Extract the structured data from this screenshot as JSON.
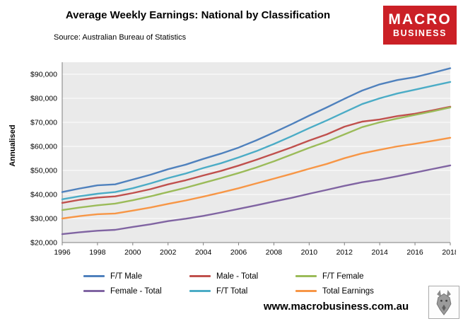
{
  "header": {
    "title": "Average Weekly Earnings: National by Classification",
    "source": "Source: Australian Bureau of Statistics"
  },
  "logo": {
    "line1": "MACRO",
    "line2": "BUSINESS",
    "bg_color": "#CB2026"
  },
  "footer": {
    "website": "www.macrobusiness.com.au"
  },
  "chart_data": {
    "type": "line",
    "title": "Average Weekly Earnings: National by Classification",
    "xlabel": "",
    "ylabel": "Annualised",
    "ylim": [
      20000,
      95000
    ],
    "y_ticks": [
      20000,
      30000,
      40000,
      50000,
      60000,
      70000,
      80000,
      90000
    ],
    "y_tick_format": "$#,##0",
    "x": [
      1996,
      1997,
      1998,
      1999,
      2000,
      2001,
      2002,
      2003,
      2004,
      2005,
      2006,
      2007,
      2008,
      2009,
      2010,
      2011,
      2012,
      2013,
      2014,
      2015,
      2016,
      2017,
      2018
    ],
    "x_ticks": [
      1996,
      1998,
      2000,
      2002,
      2004,
      2006,
      2008,
      2010,
      2012,
      2014,
      2016,
      2018
    ],
    "grid": "horizontal",
    "plot_bg": "#EAEAEA",
    "grid_color": "#FFFFFF",
    "legend_position": "bottom",
    "series": [
      {
        "name": "F/T Male",
        "color": "#4F81BD",
        "values": [
          41000,
          42500,
          43800,
          44200,
          46200,
          48200,
          50500,
          52400,
          54800,
          57000,
          59500,
          62500,
          65800,
          69200,
          72800,
          76200,
          79800,
          83200,
          85800,
          87600,
          88800,
          90600,
          92500
        ]
      },
      {
        "name": "Male - Total",
        "color": "#C0504D",
        "values": [
          36500,
          37800,
          38700,
          39200,
          40600,
          42200,
          44200,
          45900,
          47900,
          49800,
          52000,
          54400,
          57000,
          59600,
          62400,
          65000,
          68200,
          70300,
          71200,
          72600,
          73600,
          75000,
          76500
        ]
      },
      {
        "name": "F/T Female",
        "color": "#9BBB59",
        "values": [
          33500,
          34600,
          35500,
          36200,
          37600,
          39200,
          41000,
          42800,
          44800,
          46800,
          48900,
          51200,
          53800,
          56600,
          59400,
          62000,
          65000,
          68000,
          70000,
          71600,
          73100,
          74600,
          76200
        ]
      },
      {
        "name": "Female - Total",
        "color": "#8064A2",
        "values": [
          23500,
          24300,
          24900,
          25300,
          26500,
          27600,
          28900,
          29900,
          31100,
          32500,
          34000,
          35500,
          37100,
          38600,
          40300,
          41900,
          43600,
          45100,
          46200,
          47600,
          49100,
          50600,
          52100
        ]
      },
      {
        "name": "F/T Total",
        "color": "#4BACC6",
        "values": [
          38000,
          39300,
          40300,
          41000,
          42600,
          44600,
          46800,
          48700,
          51000,
          53000,
          55400,
          58000,
          61000,
          64200,
          67600,
          70800,
          74200,
          77600,
          80000,
          82000,
          83600,
          85200,
          86800
        ]
      },
      {
        "name": "Total Earnings",
        "color": "#F79646",
        "values": [
          30000,
          31000,
          31800,
          32100,
          33300,
          34600,
          36100,
          37500,
          39100,
          40800,
          42600,
          44600,
          46600,
          48600,
          50700,
          52700,
          55100,
          57100,
          58600,
          60000,
          61100,
          62300,
          63600
        ]
      }
    ],
    "legend_order": [
      "F/T Male",
      "Male - Total",
      "F/T Female",
      "Female - Total",
      "F/T Total",
      "Total Earnings"
    ]
  }
}
